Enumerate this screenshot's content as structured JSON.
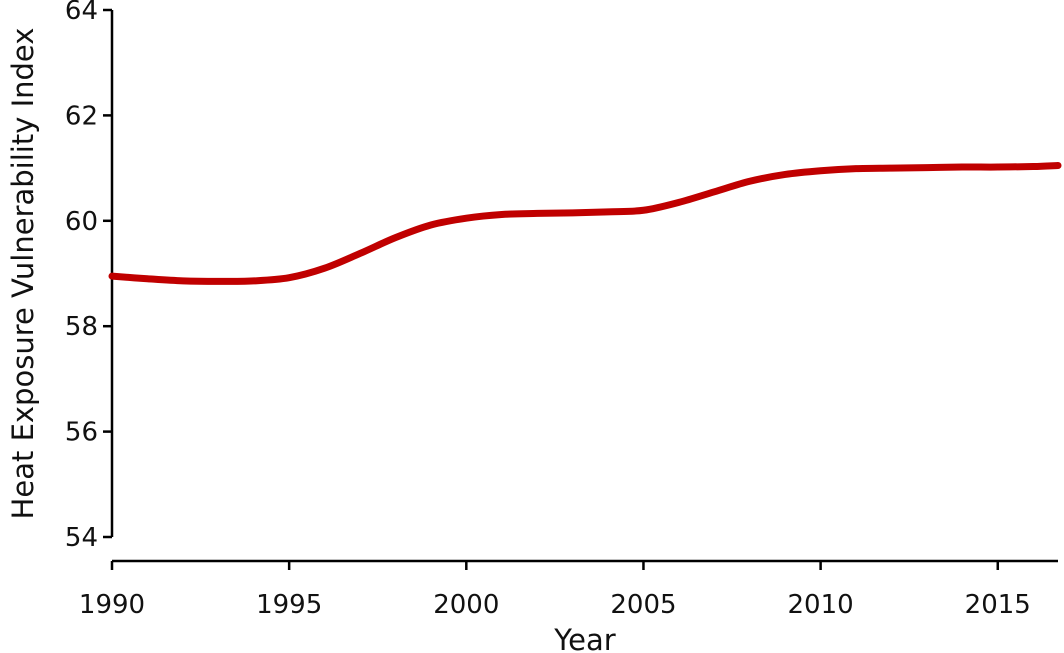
{
  "chart_data": {
    "type": "line",
    "title": "",
    "xlabel": "Year",
    "ylabel": "Heat Exposure Vulnerability  Index",
    "xlim": [
      1990,
      2016.7
    ],
    "ylim": [
      54,
      64
    ],
    "xticks": [
      "1990",
      "1995",
      "2000",
      "2005",
      "2010",
      "2015"
    ],
    "yticks": [
      "54",
      "56",
      "58",
      "60",
      "62",
      "64"
    ],
    "grid": false,
    "legend": "none",
    "series": [
      {
        "color": "#c00000",
        "x": [
          1990,
          1991,
          1992,
          1993,
          1994,
          1995,
          1996,
          1997,
          1998,
          1999,
          2000,
          2001,
          2002,
          2003,
          2004,
          2005,
          2006,
          2007,
          2008,
          2009,
          2010,
          2011,
          2012,
          2013,
          2014,
          2015,
          2016,
          2016.7
        ],
        "y": [
          58.95,
          58.9,
          58.86,
          58.85,
          58.86,
          58.92,
          59.1,
          59.38,
          59.68,
          59.92,
          60.05,
          60.12,
          60.14,
          60.15,
          60.17,
          60.2,
          60.35,
          60.55,
          60.75,
          60.88,
          60.95,
          60.99,
          61.0,
          61.01,
          61.02,
          61.02,
          61.03,
          61.05
        ]
      }
    ]
  }
}
